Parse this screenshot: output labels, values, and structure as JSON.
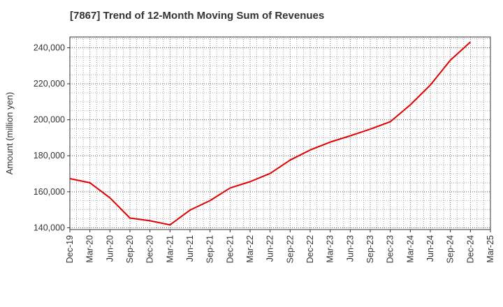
{
  "chart_data": {
    "type": "line",
    "title": "[7867]  Trend of 12-Month Moving Sum of Revenues",
    "xlabel": "",
    "ylabel": "Amount (million yen)",
    "x_tick_labels": [
      "Dec-19",
      "Mar-20",
      "Jun-20",
      "Sep-20",
      "Dec-20",
      "Mar-21",
      "Jun-21",
      "Sep-21",
      "Dec-21",
      "Mar-22",
      "Jun-22",
      "Sep-22",
      "Dec-22",
      "Mar-23",
      "Jun-23",
      "Sep-23",
      "Dec-23",
      "Mar-24",
      "Jun-24",
      "Sep-24",
      "Dec-24",
      "Mar-25"
    ],
    "y_ticks": [
      140000,
      160000,
      180000,
      200000,
      220000,
      240000
    ],
    "y_tick_labels": [
      "140,000",
      "160,000",
      "180,000",
      "200,000",
      "220,000",
      "240,000"
    ],
    "ylim": [
      139000,
      246000
    ],
    "grid": true,
    "line_color": "#e00000",
    "series": [
      {
        "x": [
          "Dec-19",
          "Mar-20",
          "Jun-20",
          "Sep-20",
          "Dec-20",
          "Mar-21",
          "Jun-21",
          "Sep-21",
          "Dec-21",
          "Mar-22",
          "Jun-22",
          "Sep-22",
          "Dec-22",
          "Mar-23",
          "Jun-23",
          "Sep-23",
          "Dec-23",
          "Mar-24",
          "Jun-24",
          "Sep-24",
          "Dec-24"
        ],
        "values": [
          167300,
          165000,
          156600,
          145400,
          143900,
          141600,
          149800,
          155100,
          162100,
          165600,
          170200,
          177600,
          183200,
          187600,
          191100,
          194800,
          198900,
          208300,
          219300,
          233100,
          243200
        ]
      }
    ]
  }
}
